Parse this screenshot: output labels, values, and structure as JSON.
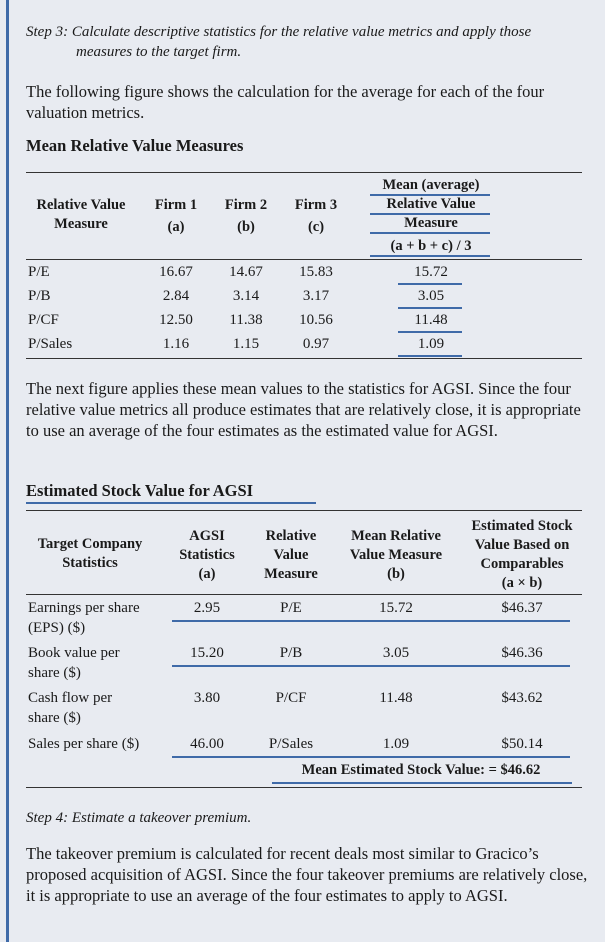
{
  "step3": {
    "line1": "Step 3: Calculate descriptive statistics for the relative value metrics and apply those",
    "line2": "measures to the target firm."
  },
  "intro1": "The following figure shows the calculation for the average for each of the four valuation metrics.",
  "table1": {
    "title": "Mean Relative Value Measures",
    "headers": {
      "measure": [
        "Relative Value",
        "Measure"
      ],
      "firm1": [
        "Firm 1",
        "(a)"
      ],
      "firm2": [
        "Firm 2",
        "(b)"
      ],
      "firm3": [
        "Firm 3",
        "(c)"
      ],
      "mean": [
        "Mean (average)",
        "Relative Value",
        "Measure",
        "(a + b + c) / 3"
      ]
    },
    "rows": [
      {
        "label": "P/E",
        "a": "16.67",
        "b": "14.67",
        "c": "15.83",
        "mean": "15.72"
      },
      {
        "label": "P/B",
        "a": "2.84",
        "b": "3.14",
        "c": "3.17",
        "mean": "3.05"
      },
      {
        "label": "P/CF",
        "a": "12.50",
        "b": "11.38",
        "c": "10.56",
        "mean": "11.48"
      },
      {
        "label": "P/Sales",
        "a": "1.16",
        "b": "1.15",
        "c": "0.97",
        "mean": "1.09"
      }
    ]
  },
  "intro2": "The next figure applies these mean values to the statistics for AGSI. Since the four relative value metrics all produce estimates that are relatively close, it is appropriate to use an average of the four estimates as the estimated value for AGSI.",
  "table2": {
    "title": "Estimated Stock Value for AGSI",
    "headers": {
      "target": [
        "Target Company",
        "Statistics"
      ],
      "agsi": [
        "AGSI",
        "Statistics",
        "(a)"
      ],
      "relative": [
        "Relative",
        "Value",
        "Measure"
      ],
      "mean": [
        "Mean Relative",
        "Value Measure",
        "(b)"
      ],
      "estimated": [
        "Estimated Stock",
        "Value Based on",
        "Comparables",
        "(a × b)"
      ]
    },
    "rows": [
      {
        "label": [
          "Earnings per share",
          "(EPS) ($)"
        ],
        "agsi": "2.95",
        "measure": "P/E",
        "mean": "15.72",
        "value": "$46.37"
      },
      {
        "label": [
          "Book value per",
          "share ($)"
        ],
        "agsi": "15.20",
        "measure": "P/B",
        "mean": "3.05",
        "value": "$46.36"
      },
      {
        "label": [
          "Cash flow per",
          "share ($)"
        ],
        "agsi": "3.80",
        "measure": "P/CF",
        "mean": "11.48",
        "value": "$43.62"
      },
      {
        "label": [
          "Sales per share ($)"
        ],
        "agsi": "46.00",
        "measure": "P/Sales",
        "mean": "1.09",
        "value": "$50.14"
      }
    ],
    "summary": "Mean Estimated Stock Value: = $46.62"
  },
  "step4": "Step 4: Estimate a takeover premium.",
  "final": "The takeover premium is calculated for recent deals most similar to Gracico’s proposed acquisition of AGSI. Since the four takeover premiums are relatively close, it is appropriate to use an average of the four estimates to apply to AGSI.",
  "colors": {
    "accent_rule": "#3f6aa8",
    "underline": "#3f6aa8"
  }
}
